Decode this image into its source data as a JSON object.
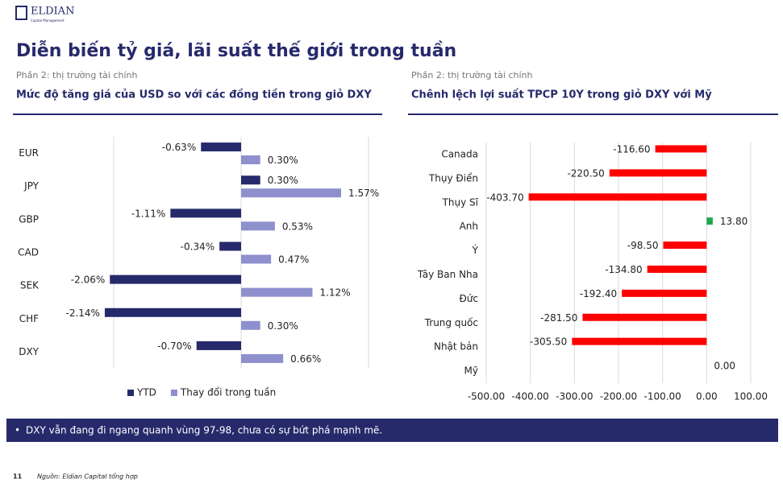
{
  "header": {
    "logo": "ELDIAN",
    "logo_sub": "Capital Management",
    "title": "Diễn biến tỷ giá, lãi suất thế giới trong tuần"
  },
  "chart_data": [
    {
      "type": "bar",
      "orientation": "horizontal",
      "section": "Phần 2: thị trường tài chính",
      "title": "Mức độ tăng giá của USD so với các đồng tiền trong giỏ DXY",
      "categories": [
        "EUR",
        "JPY",
        "GBP",
        "CAD",
        "SEK",
        "CHF",
        "DXY"
      ],
      "series": [
        {
          "name": "YTD",
          "color": "#262a6b",
          "values": [
            -0.63,
            0.3,
            -1.11,
            -0.34,
            -2.06,
            -2.14,
            -0.7
          ],
          "value_labels": [
            "-0.63%",
            "0.30%",
            "-1.11%",
            "-0.34%",
            "-2.06%",
            "-2.14%",
            "-0.70%"
          ]
        },
        {
          "name": "Thay đổi trong tuần",
          "color": "#8e8fcd",
          "values": [
            0.3,
            1.57,
            0.53,
            0.47,
            1.12,
            0.3,
            0.66
          ],
          "value_labels": [
            "0.30%",
            "1.57%",
            "0.53%",
            "0.47%",
            "1.12%",
            "0.30%",
            "0.66%"
          ]
        }
      ],
      "xlim": [
        -2.5,
        2.5
      ],
      "xticks": [
        -2,
        0,
        2
      ],
      "grid": true,
      "legend": "bottom"
    },
    {
      "type": "bar",
      "orientation": "horizontal",
      "section": "Phần 2: thị trường tài chính",
      "title": "Chênh lệch lợi suất TPCP 10Y trong giỏ DXY với Mỹ",
      "categories": [
        "Canada",
        "Thụy Điển",
        "Thụy Sĩ",
        "Anh",
        "Ý",
        "Tây Ban Nha",
        "Đức",
        "Trung quốc",
        "Nhật bản",
        "Mỹ"
      ],
      "series": [
        {
          "colors": [
            "#ff0000",
            "#ff0000",
            "#ff0000",
            "#1fa84a",
            "#ff0000",
            "#ff0000",
            "#ff0000",
            "#ff0000",
            "#ff0000",
            "#ff0000"
          ],
          "values": [
            -116.6,
            -220.5,
            -403.7,
            13.8,
            -98.5,
            -134.8,
            -192.4,
            -281.5,
            -305.5,
            0
          ],
          "value_labels": [
            "-116.60",
            "-220.50",
            "-403.70",
            "13.80",
            "-98.50",
            "-134.80",
            "-192.40",
            "-281.50",
            "-305.50",
            "0.00"
          ]
        }
      ],
      "xlim": [
        -500,
        100
      ],
      "xticks": [
        {
          "value": -500,
          "label": "-500.00"
        },
        {
          "value": -400,
          "label": "-400.00"
        },
        {
          "value": -300,
          "label": "-300.00"
        },
        {
          "value": -200,
          "label": "-200.00"
        },
        {
          "value": -100,
          "label": "-100.00"
        },
        {
          "value": 0,
          "label": "0.00"
        },
        {
          "value": 100,
          "label": "100.00"
        }
      ],
      "grid": true
    }
  ],
  "note": "DXY vẫn đang đi ngang quanh vùng 97-98, chưa có sự bứt phá mạnh mẽ.",
  "footer": {
    "page": "11",
    "source": "Nguồn: Eldian Capital tổng hợp"
  }
}
